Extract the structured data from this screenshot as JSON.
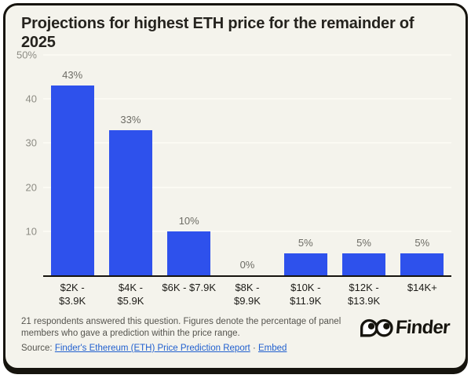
{
  "title": "Projections for highest ETH price for the remainder of 2025",
  "title_lines": [
    "Projections for highest ETH price for the remainder of",
    "2025"
  ],
  "chart_data": {
    "type": "bar",
    "title": "Projections for highest ETH price for the remainder of 2025",
    "categories": [
      "$2K - $3.9K",
      "$4K - $5.9K",
      "$6K - $7.9K",
      "$8K - $9.9K",
      "$10K - $11.9K",
      "$12K - $13.9K",
      "$14K+"
    ],
    "category_lines": [
      [
        "$2K -",
        "$3.9K"
      ],
      [
        "$4K -",
        "$5.9K"
      ],
      [
        "$6K - $7.9K"
      ],
      [
        "$8K -",
        "$9.9K"
      ],
      [
        "$10K -",
        "$11.9K"
      ],
      [
        "$12K -",
        "$13.9K"
      ],
      [
        "$14K+"
      ]
    ],
    "values": [
      43,
      33,
      10,
      0,
      5,
      5,
      5
    ],
    "value_labels": [
      "43%",
      "33%",
      "10%",
      "0%",
      "5%",
      "5%",
      "5%"
    ],
    "xlabel": "",
    "ylabel": "",
    "ylim": [
      0,
      50
    ],
    "y_ticks": [
      {
        "value": 10,
        "label": "10"
      },
      {
        "value": 20,
        "label": "20"
      },
      {
        "value": 30,
        "label": "30"
      },
      {
        "value": 40,
        "label": "40"
      },
      {
        "value": 50,
        "label": "50%"
      }
    ],
    "grid": true,
    "legend": "none",
    "bar_color": "#2e51ec"
  },
  "footer": {
    "note": "21 respondents answered this question. Figures denote the percentage of panel members who gave a prediction within the price range.",
    "source_prefix": "Source:",
    "source_link_label": "Finder's Ethereum (ETH) Price Prediction Report",
    "separator": "·",
    "embed_label": "Embed",
    "brand": "Finder"
  },
  "colors": {
    "card_background": "#f4f3ec",
    "bar": "#2e51ec",
    "border": "#16140e",
    "link": "#2160cf",
    "muted_text": "#55544e",
    "axis_label": "#8d8c84"
  }
}
